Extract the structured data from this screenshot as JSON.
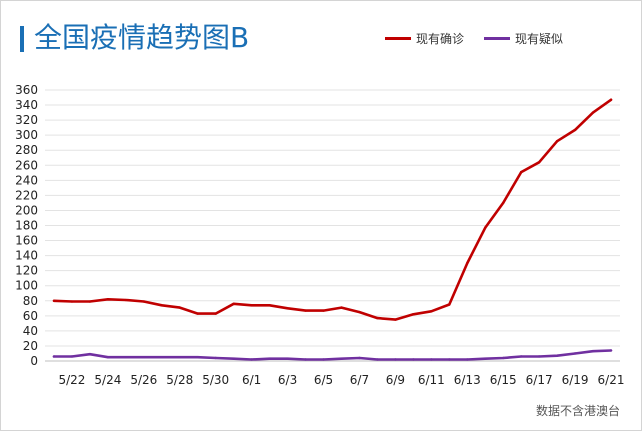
{
  "chart_data": {
    "type": "line",
    "title": "全国疫情趋势图B",
    "xlabel": "",
    "ylabel": "",
    "ylim": [
      0,
      360
    ],
    "yticks": [
      0,
      20,
      40,
      60,
      80,
      100,
      120,
      140,
      160,
      180,
      200,
      220,
      240,
      260,
      280,
      300,
      320,
      340,
      360
    ],
    "x": [
      "5/21",
      "5/22",
      "5/23",
      "5/24",
      "5/25",
      "5/26",
      "5/27",
      "5/28",
      "5/29",
      "5/30",
      "5/31",
      "6/1",
      "6/2",
      "6/3",
      "6/4",
      "6/5",
      "6/6",
      "6/7",
      "6/8",
      "6/9",
      "6/10",
      "6/11",
      "6/12",
      "6/13",
      "6/14",
      "6/15",
      "6/16",
      "6/17",
      "6/18",
      "6/19",
      "6/20",
      "6/21"
    ],
    "xtick_labels": [
      "5/22",
      "5/24",
      "5/26",
      "5/28",
      "5/30",
      "6/1",
      "6/3",
      "6/5",
      "6/7",
      "6/9",
      "6/11",
      "6/13",
      "6/15",
      "6/17",
      "6/19",
      "6/21"
    ],
    "grid": true,
    "legend_position": "top-right",
    "series": [
      {
        "name": "现有确诊",
        "color": "#c00000",
        "values": [
          80,
          79,
          79,
          82,
          81,
          79,
          74,
          71,
          63,
          63,
          76,
          74,
          74,
          70,
          67,
          67,
          71,
          65,
          57,
          55,
          62,
          66,
          75,
          130,
          177,
          210,
          251,
          264,
          292,
          307,
          330,
          347
        ]
      },
      {
        "name": "现有疑似",
        "color": "#7030a0",
        "values": [
          6,
          6,
          9,
          5,
          5,
          5,
          5,
          5,
          5,
          4,
          3,
          2,
          3,
          3,
          2,
          2,
          3,
          4,
          2,
          2,
          2,
          2,
          2,
          2,
          3,
          4,
          6,
          6,
          7,
          10,
          13,
          14
        ]
      }
    ]
  },
  "footer": {
    "source_note": "数据不含港澳台"
  }
}
